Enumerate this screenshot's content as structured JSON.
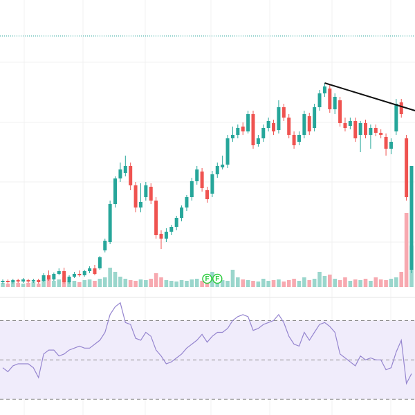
{
  "chart_data": {
    "type": "candlestick",
    "ohlc": [
      [
        7,
        11,
        5,
        9
      ],
      [
        9,
        11,
        5,
        7
      ],
      [
        7,
        12,
        5,
        10
      ],
      [
        10,
        12,
        6,
        8
      ],
      [
        8,
        13,
        6,
        11
      ],
      [
        10,
        12,
        6,
        8
      ],
      [
        8,
        12,
        6,
        10
      ],
      [
        10,
        12,
        5,
        7
      ],
      [
        9,
        20,
        7,
        17
      ],
      [
        17,
        24,
        9,
        11
      ],
      [
        11,
        21,
        9,
        19
      ],
      [
        19,
        27,
        17,
        23
      ],
      [
        23,
        28,
        5,
        7
      ],
      [
        7,
        17,
        5,
        15
      ],
      [
        15,
        22,
        13,
        19
      ],
      [
        19,
        24,
        15,
        17
      ],
      [
        17,
        25,
        15,
        23
      ],
      [
        23,
        30,
        20,
        27
      ],
      [
        27,
        32,
        17,
        19
      ],
      [
        27,
        45,
        25,
        43
      ],
      [
        53,
        70,
        50,
        67
      ],
      [
        65,
        125,
        62,
        120
      ],
      [
        120,
        160,
        115,
        157
      ],
      [
        157,
        180,
        152,
        170
      ],
      [
        165,
        190,
        160,
        175
      ],
      [
        175,
        180,
        140,
        147
      ],
      [
        147,
        152,
        108,
        115
      ],
      [
        115,
        150,
        108,
        123
      ],
      [
        130,
        152,
        125,
        147
      ],
      [
        145,
        150,
        120,
        125
      ],
      [
        125,
        130,
        70,
        75
      ],
      [
        77,
        82,
        55,
        70
      ],
      [
        70,
        85,
        65,
        80
      ],
      [
        80,
        90,
        75,
        87
      ],
      [
        87,
        103,
        82,
        100
      ],
      [
        100,
        118,
        95,
        115
      ],
      [
        115,
        133,
        110,
        130
      ],
      [
        130,
        158,
        125,
        153
      ],
      [
        153,
        175,
        148,
        170
      ],
      [
        167,
        172,
        138,
        143
      ],
      [
        140,
        145,
        122,
        127
      ],
      [
        135,
        168,
        130,
        163
      ],
      [
        163,
        180,
        158,
        175
      ],
      [
        173,
        190,
        170,
        177
      ],
      [
        177,
        220,
        172,
        215
      ],
      [
        215,
        232,
        210,
        220
      ],
      [
        220,
        235,
        215,
        230
      ],
      [
        232,
        238,
        220,
        225
      ],
      [
        225,
        255,
        222,
        250
      ],
      [
        250,
        255,
        200,
        205
      ],
      [
        207,
        220,
        203,
        215
      ],
      [
        215,
        235,
        210,
        230
      ],
      [
        230,
        245,
        225,
        240
      ],
      [
        237,
        242,
        220,
        225
      ],
      [
        227,
        270,
        222,
        260
      ],
      [
        260,
        265,
        240,
        245
      ],
      [
        245,
        250,
        215,
        220
      ],
      [
        220,
        225,
        200,
        205
      ],
      [
        210,
        225,
        205,
        220
      ],
      [
        220,
        255,
        215,
        250
      ],
      [
        247,
        252,
        220,
        225
      ],
      [
        230,
        265,
        225,
        260
      ],
      [
        260,
        285,
        255,
        280
      ],
      [
        280,
        295,
        275,
        290
      ],
      [
        287,
        292,
        252,
        257
      ],
      [
        257,
        280,
        250,
        275
      ],
      [
        270,
        275,
        232,
        237
      ],
      [
        237,
        245,
        225,
        230
      ],
      [
        233,
        245,
        228,
        240
      ],
      [
        240,
        245,
        210,
        215
      ],
      [
        220,
        240,
        195,
        237
      ],
      [
        237,
        242,
        215,
        220
      ],
      [
        220,
        235,
        200,
        230
      ],
      [
        230,
        235,
        218,
        223
      ],
      [
        223,
        228,
        215,
        220
      ],
      [
        217,
        222,
        190,
        200
      ],
      [
        200,
        215,
        192,
        210
      ],
      [
        225,
        272,
        220,
        265
      ],
      [
        267,
        272,
        245,
        250
      ],
      [
        215,
        220,
        125,
        130
      ],
      [
        25,
        175,
        20,
        175
      ]
    ],
    "up_color": "#26a69a",
    "down_color": "#ef5350",
    "ylim": [
      0,
      415
    ],
    "yticks": [
      65,
      152,
      238,
      325
    ],
    "grid": true,
    "price_line": 363,
    "trendline": [
      [
        63,
        295
      ],
      [
        80.7,
        255
      ]
    ],
    "markers": [
      {
        "index": 40,
        "label": "F"
      },
      {
        "index": 42,
        "label": "F"
      }
    ],
    "volume": {
      "values": [
        6,
        5,
        7,
        6,
        5,
        6,
        7,
        5,
        10,
        12,
        9,
        11,
        14,
        8,
        9,
        7,
        10,
        11,
        9,
        12,
        14,
        28,
        22,
        15,
        12,
        10,
        9,
        11,
        10,
        12,
        20,
        14,
        10,
        9,
        8,
        10,
        9,
        11,
        12,
        9,
        8,
        22,
        18,
        10,
        9,
        25,
        14,
        11,
        10,
        9,
        8,
        12,
        9,
        10,
        11,
        8,
        10,
        12,
        9,
        14,
        10,
        12,
        22,
        16,
        18,
        12,
        10,
        14,
        9,
        11,
        10,
        12,
        9,
        14,
        11,
        10,
        12,
        14,
        22,
        107,
        60
      ],
      "ylim": [
        0,
        110
      ],
      "up_color": "#9ad6cc",
      "down_color": "#f7a9b0"
    },
    "rsi": {
      "values": [
        46,
        44,
        47,
        48,
        48,
        48,
        46,
        41,
        53,
        55,
        55,
        52,
        53,
        55,
        56,
        57,
        56,
        56,
        58,
        60,
        64,
        73,
        77,
        79,
        69,
        68,
        61,
        60,
        64,
        62,
        55,
        52,
        48,
        49,
        51,
        53,
        56,
        58,
        60,
        63,
        59,
        62,
        64,
        64,
        66,
        70,
        72,
        73,
        72,
        65,
        66,
        68,
        69,
        70,
        73,
        69,
        62,
        58,
        57,
        64,
        60,
        64,
        68,
        69,
        67,
        64,
        53,
        51,
        49,
        47,
        52,
        50,
        51,
        50,
        50,
        45,
        46,
        54,
        60,
        38,
        43
      ],
      "ylim": [
        22,
        80
      ],
      "levels": [
        30,
        50,
        70
      ],
      "color": "#9585cf",
      "band_color": "#f0ecfb"
    }
  }
}
